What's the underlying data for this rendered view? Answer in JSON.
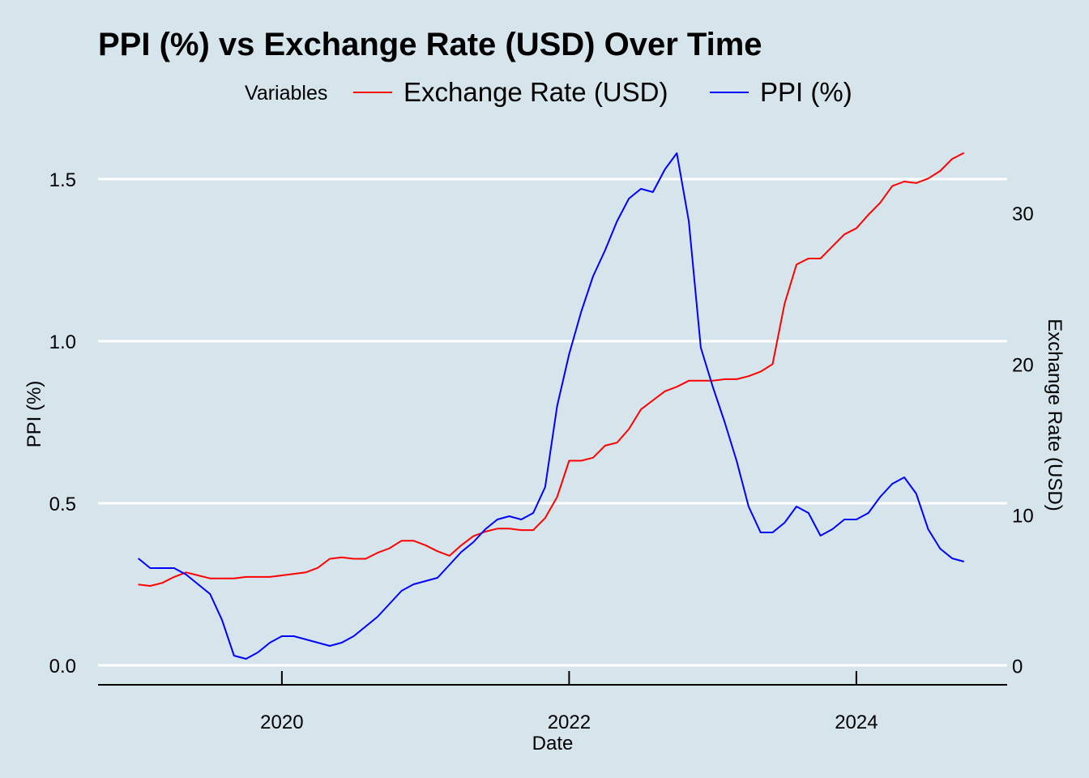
{
  "chart_data": {
    "type": "line",
    "title": "PPI (%) vs Exchange Rate (USD) Over Time",
    "xlabel": "Date",
    "ylabel": "PPI (%)",
    "y2label": "Exchange Rate (USD)",
    "ylim": [
      -0.06,
      1.64
    ],
    "y2lim": [
      -1.25,
      35.27
    ],
    "xlim": [
      2018.72,
      2025.05
    ],
    "x_ticks": [
      2020,
      2022,
      2024
    ],
    "x_tick_labels": [
      "2020",
      "2022",
      "2024"
    ],
    "y_ticks": [
      0.0,
      0.5,
      1.0,
      1.5
    ],
    "y_tick_labels": [
      "0.0",
      "0.5",
      "1.0",
      "1.5"
    ],
    "y2_ticks": [
      0,
      10,
      20,
      30
    ],
    "y2_tick_labels": [
      "0",
      "10",
      "20",
      "30"
    ],
    "grid": "horizontal major, white",
    "legend": {
      "title": "Variables",
      "position": "top",
      "entries": [
        "Exchange Rate (USD)",
        "PPI (%)"
      ]
    },
    "x_dates": [
      "2019-01",
      "2019-02",
      "2019-03",
      "2019-04",
      "2019-05",
      "2019-06",
      "2019-07",
      "2019-08",
      "2019-09",
      "2019-10",
      "2019-11",
      "2019-12",
      "2020-01",
      "2020-02",
      "2020-03",
      "2020-04",
      "2020-05",
      "2020-06",
      "2020-07",
      "2020-08",
      "2020-09",
      "2020-10",
      "2020-11",
      "2020-12",
      "2021-01",
      "2021-02",
      "2021-03",
      "2021-04",
      "2021-05",
      "2021-06",
      "2021-07",
      "2021-08",
      "2021-09",
      "2021-10",
      "2021-11",
      "2021-12",
      "2022-01",
      "2022-02",
      "2022-03",
      "2022-04",
      "2022-05",
      "2022-06",
      "2022-07",
      "2022-08",
      "2022-09",
      "2022-10",
      "2022-11",
      "2022-12",
      "2023-01",
      "2023-02",
      "2023-03",
      "2023-04",
      "2023-05",
      "2023-06",
      "2023-07",
      "2023-08",
      "2023-09",
      "2023-10",
      "2023-11",
      "2023-12",
      "2024-01",
      "2024-02",
      "2024-03",
      "2024-04",
      "2024-05",
      "2024-06",
      "2024-07",
      "2024-08",
      "2024-09",
      "2024-10"
    ],
    "series": [
      {
        "name": "Exchange Rate (USD)",
        "axis": "right",
        "color": "#ff0000",
        "values": [
          5.4,
          5.3,
          5.5,
          5.9,
          6.2,
          6.0,
          5.8,
          5.8,
          5.8,
          5.9,
          5.9,
          5.9,
          6.0,
          6.1,
          6.2,
          6.5,
          7.1,
          7.2,
          7.1,
          7.1,
          7.5,
          7.8,
          8.3,
          8.3,
          8.0,
          7.6,
          7.3,
          8.0,
          8.6,
          8.9,
          9.1,
          9.1,
          9.0,
          9.0,
          9.8,
          11.2,
          13.6,
          13.6,
          13.8,
          14.6,
          14.8,
          15.7,
          17.0,
          17.6,
          18.2,
          18.5,
          18.9,
          18.9,
          18.9,
          19.0,
          19.0,
          19.2,
          19.5,
          20.0,
          24.0,
          26.6,
          27.0,
          27.0,
          27.8,
          28.6,
          29.0,
          29.9,
          30.7,
          31.8,
          32.1,
          32.0,
          32.3,
          32.8,
          33.6,
          34.0
        ]
      },
      {
        "name": "PPI (%)",
        "axis": "left",
        "color": "#0000ff",
        "values": [
          0.33,
          0.3,
          0.3,
          0.3,
          0.28,
          0.25,
          0.22,
          0.14,
          0.03,
          0.02,
          0.04,
          0.07,
          0.09,
          0.09,
          0.08,
          0.07,
          0.06,
          0.07,
          0.09,
          0.12,
          0.15,
          0.19,
          0.23,
          0.25,
          0.26,
          0.27,
          0.31,
          0.35,
          0.38,
          0.42,
          0.45,
          0.46,
          0.45,
          0.47,
          0.55,
          0.8,
          0.96,
          1.09,
          1.2,
          1.28,
          1.37,
          1.44,
          1.47,
          1.46,
          1.53,
          1.58,
          1.37,
          0.98,
          0.86,
          0.75,
          0.63,
          0.49,
          0.41,
          0.41,
          0.44,
          0.49,
          0.47,
          0.4,
          0.42,
          0.45,
          0.45,
          0.47,
          0.52,
          0.56,
          0.58,
          0.53,
          0.42,
          0.36,
          0.33,
          0.32
        ]
      }
    ]
  }
}
